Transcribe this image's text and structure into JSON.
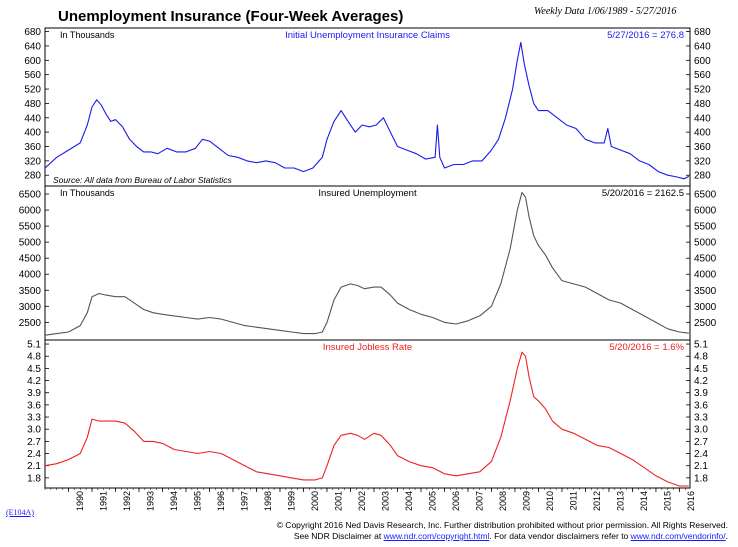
{
  "header": {
    "title": "Unemployment Insurance (Four-Week Averages)",
    "subtitle": "Weekly Data 1/06/1989 - 5/27/2016"
  },
  "colors": {
    "claims": "#1a1aee",
    "insured": "#555555",
    "rate": "#ee2222",
    "blue_text": "#1a1aff"
  },
  "chart_data": [
    {
      "type": "line",
      "title": "Initial Unemployment Insurance Claims",
      "unit_label": "In Thousands",
      "latest_label": "5/27/2016 = 276.8",
      "source": "Source: All data from Bureau of Labor Statistics",
      "ylim": [
        250,
        690
      ],
      "yticks": [
        280,
        320,
        360,
        400,
        440,
        480,
        520,
        560,
        600,
        640,
        680
      ],
      "x": [
        1989.0,
        1989.5,
        1990.0,
        1990.5,
        1990.8,
        1991.0,
        1991.2,
        1991.4,
        1991.6,
        1991.8,
        1992.0,
        1992.3,
        1992.6,
        1992.9,
        1993.2,
        1993.5,
        1993.8,
        1994.2,
        1994.6,
        1995.0,
        1995.4,
        1995.7,
        1996.0,
        1996.4,
        1996.8,
        1997.2,
        1997.6,
        1998.0,
        1998.4,
        1998.8,
        1999.2,
        1999.6,
        2000.0,
        2000.4,
        2000.8,
        2001.0,
        2001.3,
        2001.6,
        2001.9,
        2002.2,
        2002.5,
        2002.8,
        2003.1,
        2003.4,
        2003.7,
        2004.0,
        2004.4,
        2004.8,
        2005.2,
        2005.6,
        2005.7,
        2005.8,
        2006.0,
        2006.4,
        2006.8,
        2007.2,
        2007.6,
        2008.0,
        2008.3,
        2008.6,
        2008.9,
        2009.1,
        2009.25,
        2009.4,
        2009.6,
        2009.8,
        2010.0,
        2010.4,
        2010.8,
        2011.2,
        2011.6,
        2012.0,
        2012.4,
        2012.8,
        2012.95,
        2013.1,
        2013.5,
        2013.9,
        2014.3,
        2014.7,
        2015.1,
        2015.5,
        2015.9,
        2016.2,
        2016.4
      ],
      "series": [
        {
          "values": [
            300,
            330,
            350,
            370,
            420,
            470,
            490,
            475,
            450,
            430,
            435,
            415,
            380,
            360,
            345,
            345,
            340,
            355,
            345,
            345,
            355,
            380,
            375,
            355,
            335,
            330,
            320,
            315,
            320,
            315,
            300,
            300,
            290,
            300,
            330,
            380,
            430,
            460,
            430,
            400,
            420,
            415,
            420,
            440,
            400,
            360,
            350,
            340,
            325,
            330,
            420,
            330,
            300,
            310,
            310,
            320,
            320,
            350,
            380,
            440,
            520,
            600,
            650,
            590,
            530,
            480,
            460,
            460,
            440,
            420,
            410,
            380,
            370,
            370,
            410,
            360,
            350,
            340,
            320,
            310,
            290,
            280,
            275,
            270,
            276.8
          ]
        }
      ]
    },
    {
      "type": "line",
      "title": "Insured Unemployment",
      "unit_label": "In Thousands",
      "latest_label": "5/20/2016 = 2162.5",
      "ylim": [
        1950,
        6750
      ],
      "yticks": [
        2500,
        3000,
        3500,
        4000,
        4500,
        5000,
        5500,
        6000,
        6500
      ],
      "x": [
        1989.0,
        1989.5,
        1990.0,
        1990.5,
        1990.8,
        1991.0,
        1991.3,
        1991.6,
        1992.0,
        1992.4,
        1992.8,
        1993.2,
        1993.6,
        1994.0,
        1994.5,
        1995.0,
        1995.5,
        1996.0,
        1996.5,
        1997.0,
        1997.5,
        1998.0,
        1998.5,
        1999.0,
        1999.5,
        2000.0,
        2000.5,
        2000.8,
        2001.0,
        2001.3,
        2001.6,
        2002.0,
        2002.3,
        2002.6,
        2003.0,
        2003.3,
        2003.7,
        2004.0,
        2004.5,
        2005.0,
        2005.5,
        2006.0,
        2006.5,
        2007.0,
        2007.5,
        2008.0,
        2008.4,
        2008.8,
        2009.1,
        2009.3,
        2009.45,
        2009.6,
        2009.8,
        2010.0,
        2010.3,
        2010.6,
        2011.0,
        2011.5,
        2012.0,
        2012.5,
        2013.0,
        2013.5,
        2014.0,
        2014.5,
        2015.0,
        2015.5,
        2016.0,
        2016.4
      ],
      "series": [
        {
          "values": [
            2100,
            2150,
            2200,
            2400,
            2800,
            3300,
            3400,
            3350,
            3300,
            3300,
            3100,
            2900,
            2800,
            2750,
            2700,
            2650,
            2600,
            2650,
            2600,
            2500,
            2400,
            2350,
            2300,
            2250,
            2200,
            2150,
            2150,
            2200,
            2500,
            3200,
            3600,
            3700,
            3650,
            3550,
            3600,
            3600,
            3350,
            3100,
            2900,
            2750,
            2650,
            2500,
            2450,
            2550,
            2700,
            3000,
            3700,
            4800,
            6000,
            6550,
            6400,
            5800,
            5200,
            4900,
            4600,
            4200,
            3800,
            3700,
            3600,
            3400,
            3200,
            3100,
            2900,
            2700,
            2500,
            2300,
            2200,
            2162.5
          ]
        }
      ]
    },
    {
      "type": "line",
      "title": "Insured Jobless Rate",
      "latest_label": "5/20/2016 = 1.6%",
      "ylim": [
        1.55,
        5.2
      ],
      "yticks": [
        1.8,
        2.1,
        2.4,
        2.7,
        3.0,
        3.3,
        3.6,
        3.9,
        4.2,
        4.5,
        4.8,
        5.1
      ],
      "x": [
        1989.0,
        1989.5,
        1990.0,
        1990.5,
        1990.8,
        1991.0,
        1991.3,
        1991.6,
        1992.0,
        1992.4,
        1992.8,
        1993.2,
        1993.6,
        1994.0,
        1994.5,
        1995.0,
        1995.5,
        1996.0,
        1996.5,
        1997.0,
        1997.5,
        1998.0,
        1998.5,
        1999.0,
        1999.5,
        2000.0,
        2000.5,
        2000.8,
        2001.0,
        2001.3,
        2001.6,
        2002.0,
        2002.3,
        2002.6,
        2003.0,
        2003.3,
        2003.7,
        2004.0,
        2004.5,
        2005.0,
        2005.5,
        2006.0,
        2006.5,
        2007.0,
        2007.5,
        2008.0,
        2008.4,
        2008.8,
        2009.1,
        2009.3,
        2009.45,
        2009.6,
        2009.8,
        2010.0,
        2010.3,
        2010.6,
        2011.0,
        2011.5,
        2012.0,
        2012.5,
        2013.0,
        2013.5,
        2014.0,
        2014.5,
        2015.0,
        2015.5,
        2016.0,
        2016.4
      ],
      "series": [
        {
          "values": [
            2.1,
            2.15,
            2.25,
            2.4,
            2.8,
            3.25,
            3.2,
            3.2,
            3.2,
            3.15,
            2.95,
            2.7,
            2.7,
            2.65,
            2.5,
            2.45,
            2.4,
            2.45,
            2.4,
            2.25,
            2.1,
            1.95,
            1.9,
            1.85,
            1.8,
            1.75,
            1.75,
            1.8,
            2.1,
            2.6,
            2.85,
            2.9,
            2.85,
            2.75,
            2.9,
            2.85,
            2.6,
            2.35,
            2.2,
            2.1,
            2.05,
            1.9,
            1.85,
            1.9,
            1.95,
            2.2,
            2.8,
            3.7,
            4.5,
            4.9,
            4.8,
            4.3,
            3.8,
            3.7,
            3.5,
            3.2,
            3.0,
            2.9,
            2.75,
            2.6,
            2.55,
            2.4,
            2.25,
            2.05,
            1.85,
            1.7,
            1.6,
            1.6
          ]
        }
      ]
    }
  ],
  "x_axis": {
    "year_labels": [
      "1990",
      "1991",
      "1992",
      "1993",
      "1994",
      "1995",
      "1996",
      "1997",
      "1998",
      "1999",
      "2000",
      "2001",
      "2002",
      "2003",
      "2004",
      "2005",
      "2006",
      "2007",
      "2008",
      "2009",
      "2010",
      "2011",
      "2012",
      "2013",
      "2014",
      "2015",
      "2016"
    ]
  },
  "doc_code": "(E104A)",
  "footer": {
    "line1": "© Copyright 2016 Ned Davis Research, Inc. Further distribution prohibited without prior permission. All Rights Reserved.",
    "line2_a": "See NDR Disclaimer at ",
    "line2_link1": "www.ndr.com/copyright.html",
    "line2_b": ". For data vendor disclaimers refer to ",
    "line2_link2": "www.ndr.com/vendorinfo/",
    "line2_c": "."
  }
}
